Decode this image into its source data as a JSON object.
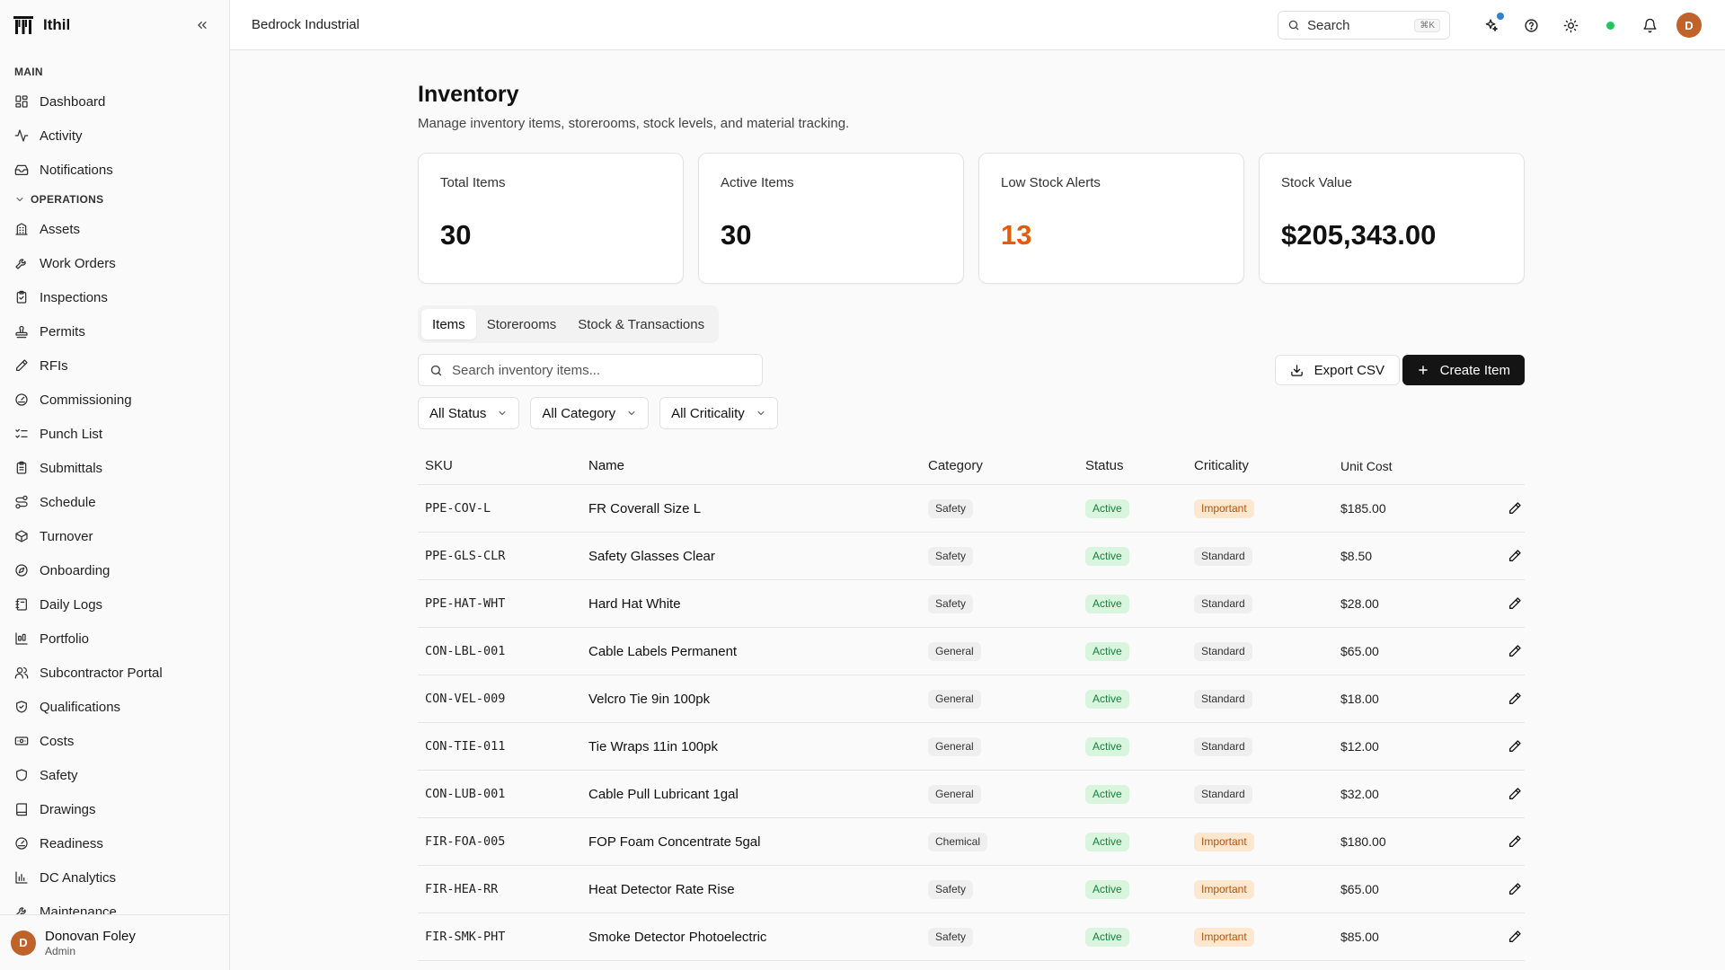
{
  "app": {
    "name": "Ithil"
  },
  "sidebar": {
    "main_label": "MAIN",
    "main_items": [
      {
        "label": "Dashboard",
        "icon": "dashboard-icon"
      },
      {
        "label": "Activity",
        "icon": "activity-icon"
      },
      {
        "label": "Notifications",
        "icon": "inbox-icon"
      }
    ],
    "ops_label": "OPERATIONS",
    "ops_items": [
      {
        "label": "Assets",
        "icon": "building-icon"
      },
      {
        "label": "Work Orders",
        "icon": "wrench-icon"
      },
      {
        "label": "Inspections",
        "icon": "clipboard-check-icon"
      },
      {
        "label": "Permits",
        "icon": "stamp-icon"
      },
      {
        "label": "RFIs",
        "icon": "pencil-icon"
      },
      {
        "label": "Commissioning",
        "icon": "gauge-icon"
      },
      {
        "label": "Punch List",
        "icon": "list-checks-icon"
      },
      {
        "label": "Submittals",
        "icon": "clipboard-icon"
      },
      {
        "label": "Schedule",
        "icon": "route-icon"
      },
      {
        "label": "Turnover",
        "icon": "package-icon"
      },
      {
        "label": "Onboarding",
        "icon": "compass-icon"
      },
      {
        "label": "Daily Logs",
        "icon": "notebook-icon"
      },
      {
        "label": "Portfolio",
        "icon": "kanban-icon"
      },
      {
        "label": "Subcontractor Portal",
        "icon": "users-icon"
      },
      {
        "label": "Qualifications",
        "icon": "shield-check-icon"
      },
      {
        "label": "Costs",
        "icon": "banknote-icon"
      },
      {
        "label": "Safety",
        "icon": "shield-icon"
      },
      {
        "label": "Drawings",
        "icon": "book-icon"
      },
      {
        "label": "Readiness",
        "icon": "gauge-icon"
      },
      {
        "label": "DC Analytics",
        "icon": "bar-chart-icon"
      },
      {
        "label": "Maintenance",
        "icon": "wrench-icon"
      }
    ],
    "user": {
      "initial": "D",
      "name": "Donovan Foley",
      "role": "Admin"
    }
  },
  "header": {
    "org_name": "Bedrock Industrial",
    "search_label": "Search",
    "search_shortcut": "⌘K",
    "avatar_initial": "D"
  },
  "page": {
    "title": "Inventory",
    "subtitle": "Manage inventory items, storerooms, stock levels, and material tracking."
  },
  "stats": [
    {
      "label": "Total Items",
      "value": "30"
    },
    {
      "label": "Active Items",
      "value": "30"
    },
    {
      "label": "Low Stock Alerts",
      "value": "13"
    },
    {
      "label": "Stock Value",
      "value": "$205,343.00"
    }
  ],
  "tabs": [
    {
      "label": "Items"
    },
    {
      "label": "Storerooms"
    },
    {
      "label": "Stock & Transactions"
    }
  ],
  "toolbar": {
    "search_placeholder": "Search inventory items...",
    "export_label": "Export CSV",
    "create_label": "Create Item"
  },
  "filters": [
    {
      "label": "All Status"
    },
    {
      "label": "All Category"
    },
    {
      "label": "All Criticality"
    }
  ],
  "table": {
    "columns": [
      "SKU",
      "Name",
      "Category",
      "Status",
      "Criticality",
      "Unit Cost"
    ],
    "rows": [
      {
        "sku": "PPE-COV-L",
        "name": "FR Coverall Size L",
        "category": "Safety",
        "status": "Active",
        "criticality": "Important",
        "cost": "$185.00"
      },
      {
        "sku": "PPE-GLS-CLR",
        "name": "Safety Glasses Clear",
        "category": "Safety",
        "status": "Active",
        "criticality": "Standard",
        "cost": "$8.50"
      },
      {
        "sku": "PPE-HAT-WHT",
        "name": "Hard Hat White",
        "category": "Safety",
        "status": "Active",
        "criticality": "Standard",
        "cost": "$28.00"
      },
      {
        "sku": "CON-LBL-001",
        "name": "Cable Labels Permanent",
        "category": "General",
        "status": "Active",
        "criticality": "Standard",
        "cost": "$65.00"
      },
      {
        "sku": "CON-VEL-009",
        "name": "Velcro Tie 9in 100pk",
        "category": "General",
        "status": "Active",
        "criticality": "Standard",
        "cost": "$18.00"
      },
      {
        "sku": "CON-TIE-011",
        "name": "Tie Wraps 11in 100pk",
        "category": "General",
        "status": "Active",
        "criticality": "Standard",
        "cost": "$12.00"
      },
      {
        "sku": "CON-LUB-001",
        "name": "Cable Pull Lubricant 1gal",
        "category": "General",
        "status": "Active",
        "criticality": "Standard",
        "cost": "$32.00"
      },
      {
        "sku": "FIR-FOA-005",
        "name": "FOP Foam Concentrate 5gal",
        "category": "Chemical",
        "status": "Active",
        "criticality": "Important",
        "cost": "$180.00"
      },
      {
        "sku": "FIR-HEA-RR",
        "name": "Heat Detector Rate Rise",
        "category": "Safety",
        "status": "Active",
        "criticality": "Important",
        "cost": "$65.00"
      },
      {
        "sku": "FIR-SMK-PHT",
        "name": "Smoke Detector Photoelectric",
        "category": "Safety",
        "status": "Active",
        "criticality": "Important",
        "cost": "$85.00"
      }
    ]
  },
  "colors": {
    "accent_dark": "#141414",
    "alert": "#e8590c",
    "avatar": "#c0632b",
    "online": "#22c55e",
    "notification": "#2f80d1"
  }
}
